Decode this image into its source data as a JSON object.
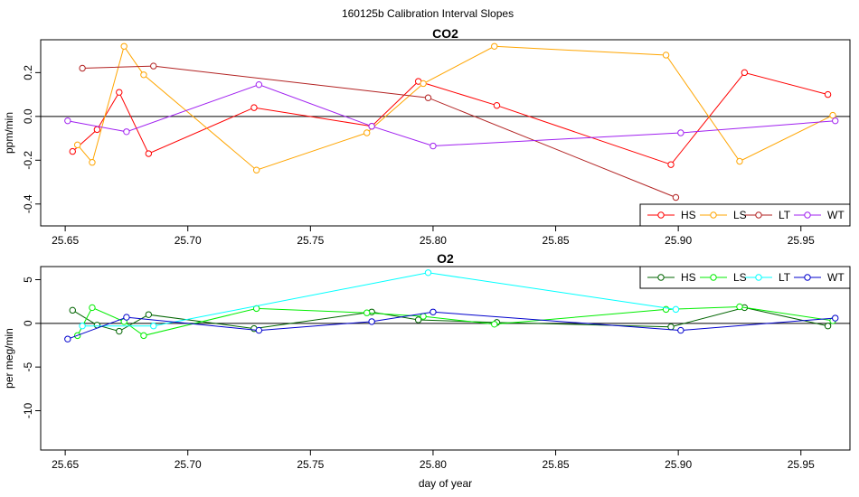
{
  "main_title": "160125b   Calibration Interval Slopes",
  "chart_data": [
    {
      "type": "line",
      "title": "CO2",
      "ylabel": "ppm/min",
      "xlabel": "",
      "xlim": [
        25.64,
        25.97
      ],
      "ylim": [
        -0.5,
        0.35
      ],
      "xticks": [
        25.65,
        25.7,
        25.75,
        25.8,
        25.85,
        25.9,
        25.95
      ],
      "xtick_labels": [
        "25.65",
        "25.70",
        "25.75",
        "25.80",
        "25.85",
        "25.90",
        "25.95"
      ],
      "yticks": [
        -0.4,
        -0.2,
        0.0,
        0.2
      ],
      "ytick_labels": [
        "-0.4",
        "-0.2",
        "0.0",
        "0.2"
      ],
      "reference_line": 0,
      "legend_position": "bottom-right",
      "series": [
        {
          "name": "HS",
          "color": "#ff0000",
          "x": [
            25.653,
            25.663,
            25.672,
            25.684,
            25.727,
            25.775,
            25.794,
            25.826,
            25.897,
            25.927,
            25.961
          ],
          "y": [
            -0.16,
            -0.06,
            0.11,
            -0.17,
            0.04,
            -0.045,
            0.16,
            0.05,
            -0.22,
            0.2,
            0.1
          ]
        },
        {
          "name": "LS",
          "color": "#ffa500",
          "x": [
            25.655,
            25.661,
            25.674,
            25.682,
            25.728,
            25.773,
            25.796,
            25.825,
            25.895,
            25.925,
            25.963
          ],
          "y": [
            -0.13,
            -0.21,
            0.32,
            0.19,
            -0.245,
            -0.075,
            0.15,
            0.32,
            0.28,
            -0.205,
            0.005
          ]
        },
        {
          "name": "LT",
          "color": "#b22222",
          "x": [
            25.657,
            25.686,
            25.798,
            25.899
          ],
          "y": [
            0.22,
            0.23,
            0.085,
            -0.37
          ]
        },
        {
          "name": "WT",
          "color": "#a020f0",
          "x": [
            25.651,
            25.675,
            25.729,
            25.775,
            25.8,
            25.901,
            25.964
          ],
          "y": [
            -0.02,
            -0.07,
            0.145,
            -0.045,
            -0.135,
            -0.075,
            -0.02
          ]
        }
      ]
    },
    {
      "type": "line",
      "title": "O2",
      "ylabel": "per meg/min",
      "xlabel": "day of year",
      "xlim": [
        25.64,
        25.97
      ],
      "ylim": [
        -14.5,
        6.5
      ],
      "xticks": [
        25.65,
        25.7,
        25.75,
        25.8,
        25.85,
        25.9,
        25.95
      ],
      "xtick_labels": [
        "25.65",
        "25.70",
        "25.75",
        "25.80",
        "25.85",
        "25.90",
        "25.95"
      ],
      "yticks": [
        -10,
        -5,
        0,
        5
      ],
      "ytick_labels": [
        "-10",
        "-5",
        "0",
        "5"
      ],
      "reference_line": 0,
      "legend_position": "top-right",
      "series": [
        {
          "name": "HS",
          "color": "#006400",
          "x": [
            25.653,
            25.663,
            25.672,
            25.684,
            25.727,
            25.775,
            25.794,
            25.826,
            25.897,
            25.927,
            25.961
          ],
          "y": [
            1.5,
            -0.2,
            -0.9,
            1.0,
            -0.6,
            1.3,
            0.4,
            0.1,
            -0.4,
            1.8,
            -0.3
          ]
        },
        {
          "name": "LS",
          "color": "#00ee00",
          "x": [
            25.655,
            25.661,
            25.674,
            25.682,
            25.728,
            25.773,
            25.796,
            25.825,
            25.895,
            25.925,
            25.963
          ],
          "y": [
            -1.4,
            1.8,
            0.2,
            -1.4,
            1.7,
            1.2,
            0.8,
            -0.1,
            1.6,
            1.9,
            0.3
          ]
        },
        {
          "name": "LT",
          "color": "#00ffff",
          "x": [
            25.657,
            25.686,
            25.798,
            25.899
          ],
          "y": [
            -0.3,
            -0.3,
            5.8,
            1.6
          ]
        },
        {
          "name": "WT",
          "color": "#0000cd",
          "x": [
            25.651,
            25.675,
            25.729,
            25.775,
            25.8,
            25.901,
            25.964
          ],
          "y": [
            -1.8,
            0.7,
            -0.8,
            0.2,
            1.3,
            -0.8,
            0.6
          ]
        }
      ]
    }
  ]
}
